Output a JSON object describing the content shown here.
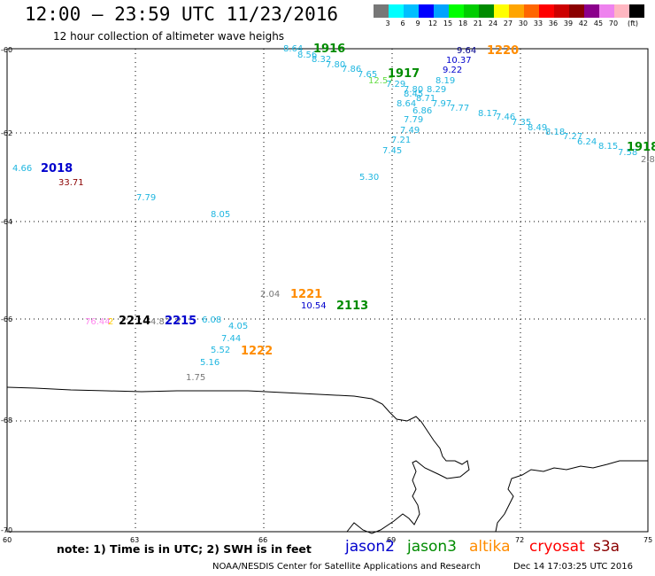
{
  "title": "12:00 – 23:59 UTC 11/23/2016",
  "subtitle": "12 hour collection of altimeter wave heighs",
  "scale": {
    "colors": [
      "#777777",
      "#00ffff",
      "#00bfff",
      "#0000ff",
      "#00a3ff",
      "#00ff00",
      "#00cd00",
      "#008b00",
      "#ffff00",
      "#ffa500",
      "#ff6600",
      "#ff0000",
      "#cd0000",
      "#8b0000",
      "#8b008b",
      "#ee82ee",
      "#ffb6c1",
      "#000000"
    ],
    "labels": [
      "3",
      "6",
      "9",
      "12",
      "15",
      "18",
      "21",
      "24",
      "27",
      "30",
      "33",
      "36",
      "39",
      "42",
      "45",
      "70"
    ],
    "unit": "(ft)"
  },
  "lat_ticks": [
    "-60",
    "-62",
    "-64",
    "-66",
    "-68",
    "-70"
  ],
  "lon_ticks": [
    "60",
    "63",
    "66",
    "69",
    "72",
    "75"
  ],
  "points": [
    {
      "t": "8.64",
      "c": "#1fb6e0"
    },
    {
      "t": "8.56",
      "c": "#1fb6e0"
    },
    {
      "t": "8.32",
      "c": "#1fb6e0"
    },
    {
      "t": "7.80",
      "c": "#1fb6e0"
    },
    {
      "t": "7.86",
      "c": "#1fb6e0"
    },
    {
      "t": "7.65",
      "c": "#1fb6e0"
    },
    {
      "t": "12.57",
      "c": "#66dd44"
    },
    {
      "t": "7.29",
      "c": "#1fb6e0"
    },
    {
      "t": "9.64",
      "c": "#00008b"
    },
    {
      "t": "10.37",
      "c": "#0000cd"
    },
    {
      "t": "9.22",
      "c": "#0000cd"
    },
    {
      "t": "8.19",
      "c": "#1fb6e0"
    },
    {
      "t": "7.80",
      "c": "#1fb6e0"
    },
    {
      "t": "8.29",
      "c": "#1fb6e0"
    },
    {
      "t": "8.45",
      "c": "#1fb6e0"
    },
    {
      "t": "8.71",
      "c": "#1fb6e0"
    },
    {
      "t": "8.64",
      "c": "#1fb6e0"
    },
    {
      "t": "7.97",
      "c": "#1fb6e0"
    },
    {
      "t": "7.77",
      "c": "#1fb6e0"
    },
    {
      "t": "6.86",
      "c": "#1fb6e0"
    },
    {
      "t": "8.17",
      "c": "#1fb6e0"
    },
    {
      "t": "7.46",
      "c": "#1fb6e0"
    },
    {
      "t": "7.79",
      "c": "#1fb6e0"
    },
    {
      "t": "7.35",
      "c": "#1fb6e0"
    },
    {
      "t": "7.49",
      "c": "#1fb6e0"
    },
    {
      "t": "8.49",
      "c": "#1fb6e0"
    },
    {
      "t": "8.18",
      "c": "#1fb6e0"
    },
    {
      "t": "7.21",
      "c": "#1fb6e0"
    },
    {
      "t": "7.27",
      "c": "#1fb6e0"
    },
    {
      "t": "6.24",
      "c": "#1fb6e0"
    },
    {
      "t": "7.45",
      "c": "#1fb6e0"
    },
    {
      "t": "8.15",
      "c": "#1fb6e0"
    },
    {
      "t": "7.58",
      "c": "#1fb6e0"
    },
    {
      "t": "2.8",
      "c": "#777777"
    },
    {
      "t": "4.66",
      "c": "#1fb6e0"
    },
    {
      "t": "33.71",
      "c": "#8b0000"
    },
    {
      "t": "5.30",
      "c": "#1fb6e0"
    },
    {
      "t": "7.79",
      "c": "#1fb6e0"
    },
    {
      "t": "8.05",
      "c": "#1fb6e0"
    },
    {
      "t": "2.04",
      "c": "#777777"
    },
    {
      "t": "10.54",
      "c": "#0000cd"
    },
    {
      "t": "76.44",
      "c": "#ff88ee"
    },
    {
      "t": "2",
      "c": "#ffcc00"
    },
    {
      "t": "4.82",
      "c": "#777777"
    },
    {
      "t": "2",
      "c": "#777777"
    },
    {
      "t": "6.08",
      "c": "#1fb6e0"
    },
    {
      "t": "4.05",
      "c": "#1fb6e0"
    },
    {
      "t": "7.44",
      "c": "#1fb6e0"
    },
    {
      "t": "5.52",
      "c": "#1fb6e0"
    },
    {
      "t": "5.16",
      "c": "#1fb6e0"
    },
    {
      "t": "1.75",
      "c": "#777777"
    }
  ],
  "passes": [
    {
      "t": "1916",
      "c": "#008b00"
    },
    {
      "t": "1917",
      "c": "#008b00"
    },
    {
      "t": "1220",
      "c": "#ff8c00"
    },
    {
      "t": "1918",
      "c": "#008b00"
    },
    {
      "t": "2018",
      "c": "#0000cd"
    },
    {
      "t": "1221",
      "c": "#ff8c00"
    },
    {
      "t": "2113",
      "c": "#008b00"
    },
    {
      "t": "2214",
      "c": "#000000"
    },
    {
      "t": "2215",
      "c": "#0000cd"
    },
    {
      "t": "1222",
      "c": "#ff8c00"
    }
  ],
  "note": "note: 1) Time is in UTC; 2) SWH is in feet",
  "satellites": [
    {
      "t": "jason2",
      "c": "#0000cd"
    },
    {
      "t": "jason3",
      "c": "#008b00"
    },
    {
      "t": "altika",
      "c": "#ff8c00"
    },
    {
      "t": "cryosat",
      "c": "#ff0000"
    },
    {
      "t": "s3a",
      "c": "#8b0000"
    }
  ],
  "credit": "NOAA/NESDIS Center for Satellite Applications and Research",
  "stamp": "Dec 14 17:03:25 UTC 2016"
}
